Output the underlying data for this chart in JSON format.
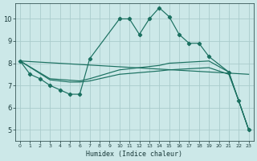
{
  "xlabel": "Humidex (Indice chaleur)",
  "bg_color": "#cce8e8",
  "grid_color": "#aacccc",
  "line_color": "#1a7060",
  "xlim": [
    -0.5,
    23.5
  ],
  "ylim": [
    4.5,
    10.7
  ],
  "yticks": [
    5,
    6,
    7,
    8,
    9,
    10
  ],
  "xticks": [
    0,
    1,
    2,
    3,
    4,
    5,
    6,
    7,
    8,
    9,
    10,
    11,
    12,
    13,
    14,
    15,
    16,
    17,
    18,
    19,
    20,
    21,
    22,
    23
  ],
  "line1_x": [
    0,
    1,
    2,
    3,
    4,
    5,
    6,
    7,
    10,
    11,
    12,
    13,
    14,
    15,
    16,
    17,
    18,
    19,
    21,
    22,
    23
  ],
  "line1_y": [
    8.1,
    7.5,
    7.3,
    7.0,
    6.8,
    6.6,
    6.6,
    8.2,
    10.0,
    10.0,
    9.3,
    10.0,
    10.5,
    10.1,
    9.3,
    8.9,
    8.9,
    8.3,
    7.6,
    6.3,
    5.0
  ],
  "line2_x": [
    0,
    23
  ],
  "line2_y": [
    8.1,
    7.5
  ],
  "line3_x": [
    0,
    3,
    6,
    7,
    10,
    14,
    15,
    19,
    21,
    22,
    23
  ],
  "line3_y": [
    8.1,
    7.3,
    7.2,
    7.3,
    7.7,
    7.9,
    8.0,
    8.1,
    7.6,
    6.3,
    5.0
  ],
  "line4_x": [
    0,
    3,
    5,
    6,
    7,
    10,
    14,
    15,
    19,
    21,
    22,
    23
  ],
  "line4_y": [
    8.1,
    7.25,
    7.15,
    7.15,
    7.2,
    7.5,
    7.65,
    7.7,
    7.8,
    7.5,
    6.3,
    5.0
  ]
}
